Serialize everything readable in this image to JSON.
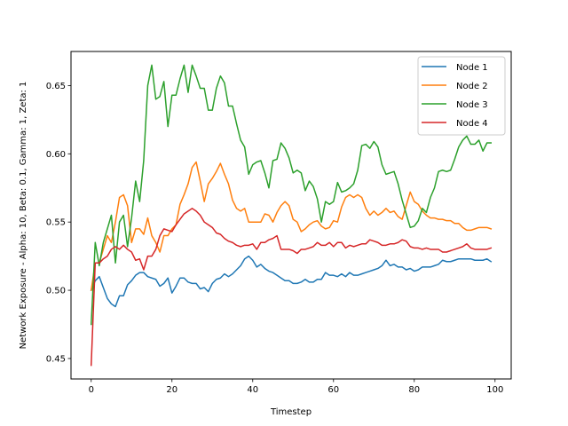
{
  "chart_data": {
    "type": "line",
    "xlabel": "Timestep",
    "ylabel": "Network Exposure - Alpha: 10, Beta: 0.1, Gamma: 1, Zeta: 1",
    "xlim": [
      -5,
      104
    ],
    "ylim": [
      0.435,
      0.675
    ],
    "xticks": [
      0,
      20,
      40,
      60,
      80,
      100
    ],
    "yticks": [
      0.45,
      0.5,
      0.55,
      0.6,
      0.65
    ],
    "xtick_labels": [
      "0",
      "20",
      "40",
      "60",
      "80",
      "100"
    ],
    "ytick_labels": [
      "0.45",
      "0.50",
      "0.55",
      "0.60",
      "0.65"
    ],
    "grid": false,
    "legend_position": "top-right",
    "x": [
      0,
      1,
      2,
      3,
      4,
      5,
      6,
      7,
      8,
      9,
      10,
      11,
      12,
      13,
      14,
      15,
      16,
      17,
      18,
      19,
      20,
      21,
      22,
      23,
      24,
      25,
      26,
      27,
      28,
      29,
      30,
      31,
      32,
      33,
      34,
      35,
      36,
      37,
      38,
      39,
      40,
      41,
      42,
      43,
      44,
      45,
      46,
      47,
      48,
      49,
      50,
      51,
      52,
      53,
      54,
      55,
      56,
      57,
      58,
      59,
      60,
      61,
      62,
      63,
      64,
      65,
      66,
      67,
      68,
      69,
      70,
      71,
      72,
      73,
      74,
      75,
      76,
      77,
      78,
      79,
      80,
      81,
      82,
      83,
      84,
      85,
      86,
      87,
      88,
      89,
      90,
      91,
      92,
      93,
      94,
      95,
      96,
      97,
      98,
      99
    ],
    "series": [
      {
        "name": "Node 1",
        "color": "#1f77b4",
        "values": [
          0.5,
          0.507,
          0.51,
          0.502,
          0.494,
          0.49,
          0.488,
          0.496,
          0.496,
          0.504,
          0.507,
          0.511,
          0.513,
          0.513,
          0.51,
          0.509,
          0.508,
          0.503,
          0.505,
          0.509,
          0.498,
          0.503,
          0.509,
          0.509,
          0.506,
          0.505,
          0.505,
          0.501,
          0.502,
          0.499,
          0.505,
          0.508,
          0.509,
          0.512,
          0.51,
          0.512,
          0.515,
          0.518,
          0.523,
          0.525,
          0.522,
          0.517,
          0.519,
          0.516,
          0.514,
          0.513,
          0.511,
          0.509,
          0.507,
          0.507,
          0.505,
          0.505,
          0.506,
          0.508,
          0.506,
          0.506,
          0.508,
          0.508,
          0.513,
          0.511,
          0.511,
          0.51,
          0.512,
          0.51,
          0.513,
          0.511,
          0.511,
          0.512,
          0.513,
          0.514,
          0.515,
          0.516,
          0.518,
          0.522,
          0.518,
          0.519,
          0.517,
          0.517,
          0.515,
          0.516,
          0.514,
          0.515,
          0.517,
          0.517,
          0.517,
          0.518,
          0.519,
          0.522,
          0.521,
          0.521,
          0.522,
          0.523,
          0.523,
          0.523,
          0.523,
          0.522,
          0.522,
          0.522,
          0.523,
          0.521
        ]
      },
      {
        "name": "Node 2",
        "color": "#ff7f0e",
        "values": [
          0.5,
          0.52,
          0.52,
          0.53,
          0.54,
          0.535,
          0.55,
          0.568,
          0.57,
          0.562,
          0.535,
          0.545,
          0.545,
          0.541,
          0.553,
          0.54,
          0.535,
          0.528,
          0.54,
          0.54,
          0.545,
          0.548,
          0.563,
          0.57,
          0.578,
          0.59,
          0.594,
          0.58,
          0.565,
          0.578,
          0.582,
          0.587,
          0.593,
          0.585,
          0.578,
          0.566,
          0.56,
          0.558,
          0.56,
          0.55,
          0.55,
          0.55,
          0.55,
          0.556,
          0.555,
          0.55,
          0.557,
          0.562,
          0.565,
          0.562,
          0.552,
          0.55,
          0.543,
          0.545,
          0.548,
          0.55,
          0.551,
          0.547,
          0.545,
          0.546,
          0.551,
          0.55,
          0.561,
          0.568,
          0.57,
          0.568,
          0.57,
          0.568,
          0.56,
          0.555,
          0.558,
          0.555,
          0.557,
          0.56,
          0.557,
          0.558,
          0.554,
          0.552,
          0.562,
          0.572,
          0.565,
          0.563,
          0.558,
          0.555,
          0.553,
          0.553,
          0.552,
          0.552,
          0.551,
          0.551,
          0.549,
          0.549,
          0.546,
          0.544,
          0.544,
          0.545,
          0.546,
          0.546,
          0.546,
          0.545
        ]
      },
      {
        "name": "Node 3",
        "color": "#2ca02c",
        "values": [
          0.475,
          0.535,
          0.518,
          0.535,
          0.545,
          0.555,
          0.52,
          0.55,
          0.555,
          0.532,
          0.553,
          0.58,
          0.565,
          0.595,
          0.65,
          0.665,
          0.64,
          0.642,
          0.653,
          0.62,
          0.643,
          0.643,
          0.655,
          0.665,
          0.645,
          0.665,
          0.657,
          0.648,
          0.648,
          0.632,
          0.632,
          0.648,
          0.657,
          0.652,
          0.635,
          0.635,
          0.622,
          0.61,
          0.605,
          0.585,
          0.592,
          0.594,
          0.595,
          0.586,
          0.575,
          0.595,
          0.596,
          0.608,
          0.604,
          0.597,
          0.586,
          0.588,
          0.586,
          0.573,
          0.58,
          0.576,
          0.567,
          0.55,
          0.565,
          0.563,
          0.565,
          0.579,
          0.572,
          0.573,
          0.575,
          0.578,
          0.588,
          0.606,
          0.607,
          0.604,
          0.609,
          0.605,
          0.592,
          0.585,
          0.586,
          0.587,
          0.578,
          0.566,
          0.556,
          0.546,
          0.547,
          0.551,
          0.56,
          0.557,
          0.568,
          0.575,
          0.587,
          0.588,
          0.587,
          0.588,
          0.596,
          0.605,
          0.61,
          0.613,
          0.607,
          0.607,
          0.61,
          0.602,
          0.608,
          0.608
        ]
      },
      {
        "name": "Node 4",
        "color": "#d62728",
        "values": [
          0.445,
          0.52,
          0.52,
          0.523,
          0.525,
          0.53,
          0.532,
          0.53,
          0.533,
          0.53,
          0.528,
          0.522,
          0.523,
          0.515,
          0.525,
          0.525,
          0.53,
          0.54,
          0.545,
          0.544,
          0.543,
          0.548,
          0.552,
          0.556,
          0.558,
          0.56,
          0.558,
          0.555,
          0.55,
          0.548,
          0.546,
          0.542,
          0.541,
          0.538,
          0.536,
          0.535,
          0.533,
          0.532,
          0.533,
          0.533,
          0.534,
          0.53,
          0.535,
          0.535,
          0.537,
          0.538,
          0.54,
          0.53,
          0.53,
          0.53,
          0.529,
          0.527,
          0.53,
          0.53,
          0.531,
          0.532,
          0.535,
          0.533,
          0.533,
          0.535,
          0.532,
          0.535,
          0.535,
          0.531,
          0.533,
          0.532,
          0.533,
          0.534,
          0.534,
          0.537,
          0.536,
          0.535,
          0.533,
          0.533,
          0.534,
          0.534,
          0.535,
          0.537,
          0.536,
          0.532,
          0.531,
          0.531,
          0.53,
          0.531,
          0.53,
          0.53,
          0.53,
          0.528,
          0.528,
          0.529,
          0.53,
          0.531,
          0.532,
          0.534,
          0.531,
          0.53,
          0.53,
          0.53,
          0.53,
          0.531
        ]
      }
    ]
  }
}
